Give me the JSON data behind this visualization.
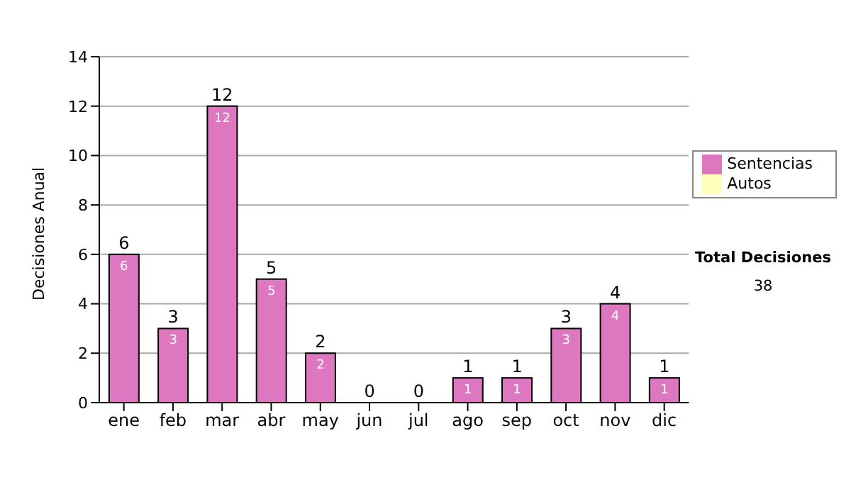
{
  "chart_data": {
    "type": "bar",
    "ylabel": "Decisiones Anual",
    "categories": [
      "ene",
      "feb",
      "mar",
      "abr",
      "may",
      "jun",
      "jul",
      "ago",
      "sep",
      "oct",
      "nov",
      "dic"
    ],
    "series": [
      {
        "name": "Sentencias",
        "color": "#dd77c0",
        "values": [
          6,
          3,
          12,
          5,
          2,
          0,
          0,
          1,
          1,
          3,
          4,
          1
        ],
        "value_labels": [
          "6",
          "3",
          "12",
          "5",
          "2",
          null,
          null,
          "1",
          "1",
          "3",
          "4",
          "1"
        ]
      },
      {
        "name": "Autos",
        "color": "#ffffbb",
        "values": [
          0,
          0,
          0,
          0,
          0,
          0,
          0,
          0,
          0,
          0,
          0,
          0
        ]
      }
    ],
    "stacked": true,
    "totals": [
      "6",
      "3",
      "12",
      "5",
      "2",
      "0",
      "0",
      "1",
      "1",
      "3",
      "4",
      "1"
    ],
    "ylim": [
      0,
      14
    ],
    "yticks": [
      0,
      2,
      4,
      6,
      8,
      10,
      12,
      14
    ],
    "grid": "y",
    "legend": "right",
    "annotations": [
      "Total Decisiones",
      "38"
    ]
  }
}
